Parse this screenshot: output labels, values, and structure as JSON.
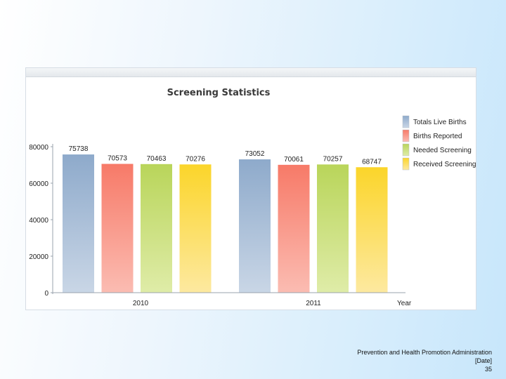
{
  "footer": {
    "org": "Prevention and Health Promotion Administration",
    "date": "[Date]",
    "page": "35"
  },
  "chart_data": {
    "type": "bar",
    "title": "Screening Statistics",
    "xlabel": "Year",
    "ylabel": "",
    "ylim": [
      0,
      80000
    ],
    "yticks": [
      0,
      20000,
      40000,
      60000,
      80000
    ],
    "legend_position": "top-right",
    "categories": [
      "2010",
      "2011"
    ],
    "series": [
      {
        "name": "Totals Live Births",
        "color_top": "#8eaacb",
        "color_bottom": "#c9d6e6",
        "values": [
          75738,
          73052
        ]
      },
      {
        "name": "Births Reported",
        "color_top": "#f77a68",
        "color_bottom": "#fbbcb2",
        "values": [
          70573,
          70061
        ]
      },
      {
        "name": "Needed Screening",
        "color_top": "#b9d55a",
        "color_bottom": "#dfeca8",
        "values": [
          70463,
          70257
        ]
      },
      {
        "name": "Received Screening",
        "color_top": "#fbd52a",
        "color_bottom": "#fde9a0",
        "values": [
          70276,
          68747
        ]
      }
    ]
  }
}
